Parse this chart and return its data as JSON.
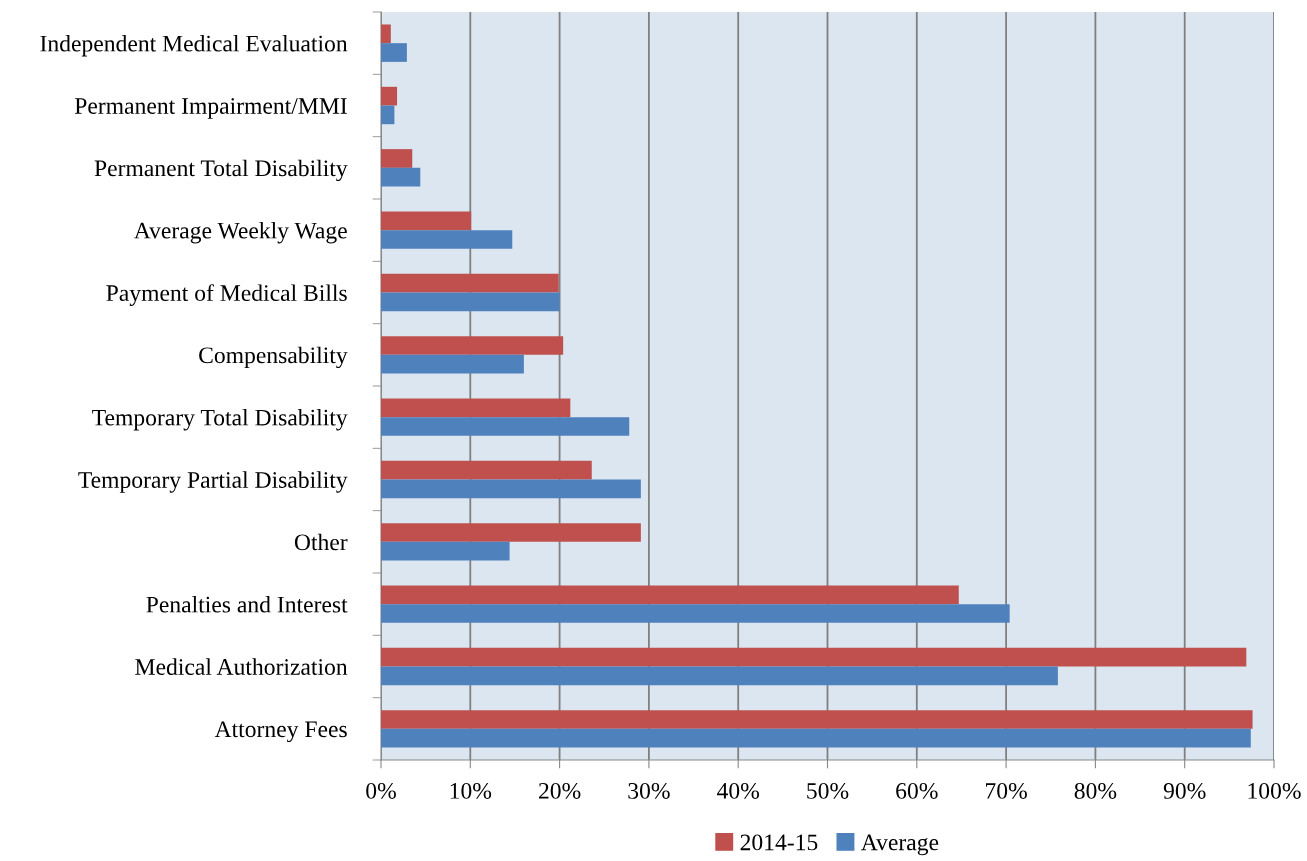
{
  "chart_data": {
    "type": "bar",
    "orientation": "horizontal",
    "categories": [
      "Independent Medical Evaluation",
      "Permanent Impairment/MMI",
      "Permanent Total Disability",
      "Average Weekly Wage",
      "Payment of Medical Bills",
      "Compensability",
      "Temporary Total Disability",
      "Temporary Partial Disability",
      "Other",
      "Penalties and Interest",
      "Medical Authorization",
      "Attorney Fees"
    ],
    "series": [
      {
        "name": "2014-15",
        "color": "#c0504d",
        "values": [
          1.1,
          1.8,
          3.5,
          10.1,
          19.9,
          20.4,
          21.2,
          23.6,
          29.1,
          64.7,
          96.9,
          97.6
        ]
      },
      {
        "name": "Average",
        "color": "#4f81bd",
        "values": [
          2.9,
          1.5,
          4.4,
          14.7,
          20.0,
          16.0,
          27.8,
          29.1,
          14.4,
          70.4,
          75.8,
          97.4
        ]
      }
    ],
    "xlim": [
      0,
      100
    ],
    "xticks": [
      {
        "value": 0,
        "label": "0%"
      },
      {
        "value": 10,
        "label": "10%"
      },
      {
        "value": 20,
        "label": "20%"
      },
      {
        "value": 30,
        "label": "30%"
      },
      {
        "value": 40,
        "label": "40%"
      },
      {
        "value": 50,
        "label": "50%"
      },
      {
        "value": 60,
        "label": "60%"
      },
      {
        "value": 70,
        "label": "70%"
      },
      {
        "value": 80,
        "label": "80%"
      },
      {
        "value": 90,
        "label": "90%"
      },
      {
        "value": 100,
        "label": "100%"
      }
    ],
    "grid": "x",
    "legend": "bottom"
  }
}
